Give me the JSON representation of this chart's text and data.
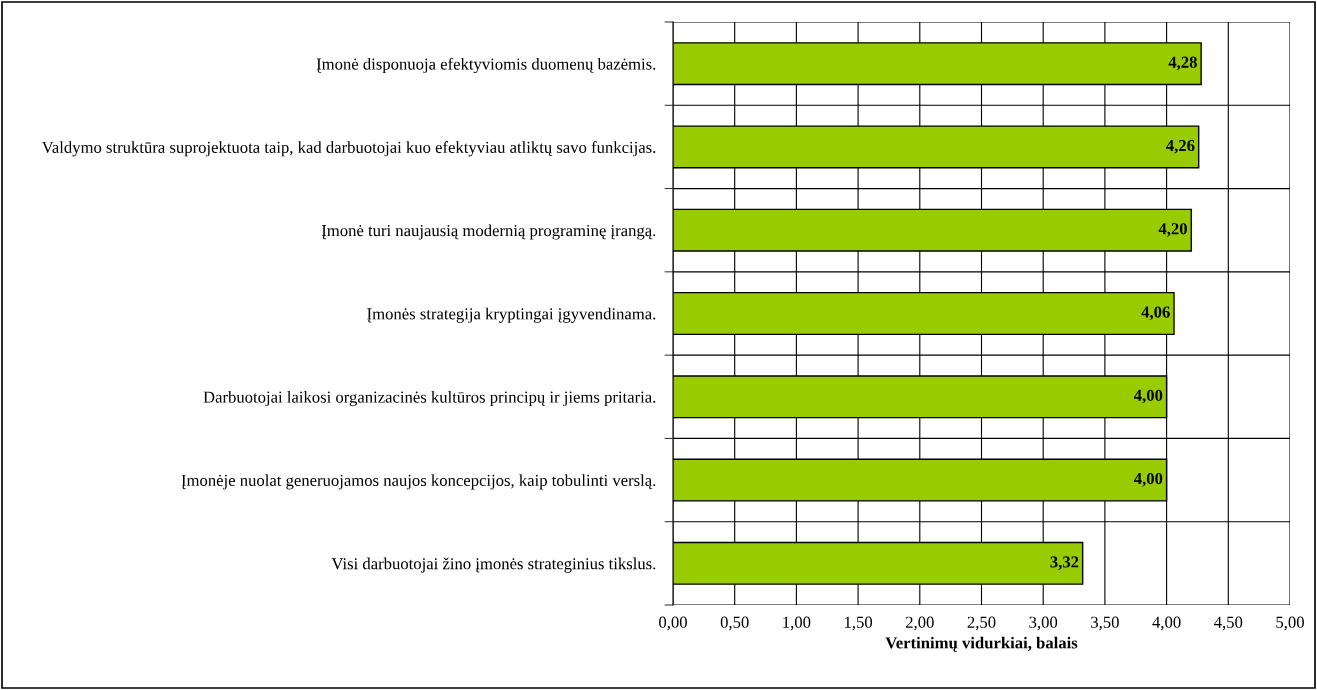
{
  "chart_data": {
    "type": "bar",
    "orientation": "horizontal",
    "xlabel": "Vertinimų vidurkiai, balais",
    "categories": [
      "Įmonė disponuoja efektyviomis duomenų bazėmis.",
      "Valdymo struktūra suprojektuota taip, kad darbuotojai kuo efektyviau atliktų savo funkcijas.",
      "Įmonė turi naujausią modernią programinę įrangą.",
      "Įmonės strategija kryptingai įgyvendinama.",
      "Darbuotojai laikosi organizacinės kultūros principų ir jiems pritaria.",
      "Įmonėje nuolat generuojamos naujos koncepcijos, kaip tobulinti verslą.",
      "Visi darbuotojai žino įmonės strateginius tikslus."
    ],
    "values": [
      4.28,
      4.26,
      4.2,
      4.06,
      4.0,
      4.0,
      3.32
    ],
    "value_labels": [
      "4,28",
      "4,26",
      "4,20",
      "4,06",
      "4,00",
      "4,00",
      "3,32"
    ],
    "color": "#99cc00",
    "xlim": [
      0,
      5
    ],
    "xticks": [
      {
        "value": 0,
        "label": "0,00"
      },
      {
        "value": 0.5,
        "label": "0,50"
      },
      {
        "value": 1,
        "label": "1,00"
      },
      {
        "value": 1.5,
        "label": "1,50"
      },
      {
        "value": 2,
        "label": "2,00"
      },
      {
        "value": 2.5,
        "label": "2,50"
      },
      {
        "value": 3,
        "label": "3,00"
      },
      {
        "value": 3.5,
        "label": "3,50"
      },
      {
        "value": 4,
        "label": "4,00"
      },
      {
        "value": 4.5,
        "label": "4,50"
      },
      {
        "value": 5,
        "label": "5,00"
      }
    ],
    "grid": true,
    "legend": false
  }
}
